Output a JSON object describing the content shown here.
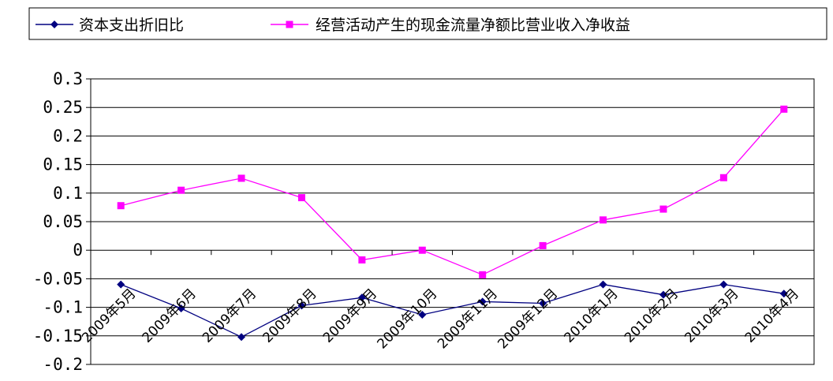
{
  "chart_data": {
    "type": "line",
    "categories": [
      "2009年5月",
      "2009年6月",
      "2009年7月",
      "2009年8月",
      "2009年9月",
      "2009年10月",
      "2009年11月",
      "2009年12月",
      "2010年1月",
      "2010年2月",
      "2010年3月",
      "2010年4月"
    ],
    "series": [
      {
        "name": "资本支出折旧比",
        "color": "#000080",
        "marker": "diamond",
        "values": [
          -0.06,
          -0.102,
          -0.152,
          -0.097,
          -0.083,
          -0.113,
          -0.09,
          -0.093,
          -0.06,
          -0.078,
          -0.06,
          -0.076
        ]
      },
      {
        "name": "经营活动产生的现金流量净额比营业收入净收益",
        "color": "#ff00ff",
        "marker": "square",
        "values": [
          0.078,
          0.105,
          0.126,
          0.092,
          -0.017,
          0.0,
          -0.043,
          0.008,
          0.053,
          0.072,
          0.127,
          0.247
        ]
      }
    ],
    "ylim": [
      -0.2,
      0.3
    ],
    "yticks": [
      "-0.2",
      "-0.15",
      "-0.1",
      "-0.05",
      "0",
      "0.05",
      "0.1",
      "0.15",
      "0.2",
      "0.25",
      "0.3"
    ],
    "grid": "horizontal",
    "legend_position": "top"
  }
}
